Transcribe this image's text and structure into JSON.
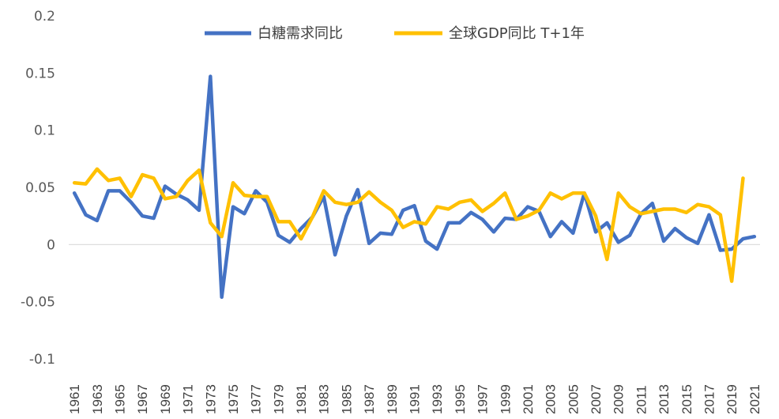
{
  "chart_data": {
    "type": "line",
    "title": "",
    "xlabel": "",
    "ylabel": "",
    "ylim": [
      -0.1,
      0.2
    ],
    "yticks": [
      -0.1,
      -0.05,
      0,
      0.05,
      0.1,
      0.15,
      0.2
    ],
    "ytick_labels": [
      "-0.1",
      "-0.05",
      "0",
      "0.05",
      "0.1",
      "0.15",
      "0.2"
    ],
    "grid": false,
    "legend_position": "top-center",
    "x": [
      1961,
      1962,
      1963,
      1964,
      1965,
      1966,
      1967,
      1968,
      1969,
      1970,
      1971,
      1972,
      1973,
      1974,
      1975,
      1976,
      1977,
      1978,
      1979,
      1980,
      1981,
      1982,
      1983,
      1984,
      1985,
      1986,
      1987,
      1988,
      1989,
      1990,
      1991,
      1992,
      1993,
      1994,
      1995,
      1996,
      1997,
      1998,
      1999,
      2000,
      2001,
      2002,
      2003,
      2004,
      2005,
      2006,
      2007,
      2008,
      2009,
      2010,
      2011,
      2012,
      2013,
      2014,
      2015,
      2016,
      2017,
      2018,
      2019,
      2020,
      2021
    ],
    "x_tick_labels": [
      "1961",
      "1963",
      "1965",
      "1967",
      "1969",
      "1971",
      "1973",
      "1975",
      "1977",
      "1979",
      "1981",
      "1983",
      "1985",
      "1987",
      "1989",
      "1991",
      "1993",
      "1995",
      "1997",
      "1999",
      "2001",
      "2003",
      "2005",
      "2007",
      "2009",
      "2011",
      "2013",
      "2015",
      "2017",
      "2019",
      "2021"
    ],
    "series": [
      {
        "name": "白糖需求同比",
        "color": "#4472C4",
        "values": [
          0.045,
          0.026,
          0.021,
          0.047,
          0.047,
          0.037,
          0.025,
          0.023,
          0.051,
          0.044,
          0.039,
          0.03,
          0.147,
          -0.046,
          0.033,
          0.027,
          0.047,
          0.037,
          0.008,
          0.002,
          0.014,
          0.024,
          0.042,
          -0.009,
          0.025,
          0.048,
          0.001,
          0.01,
          0.009,
          0.03,
          0.034,
          0.003,
          -0.004,
          0.019,
          0.019,
          0.028,
          0.022,
          0.011,
          0.023,
          0.022,
          0.033,
          0.029,
          0.007,
          0.02,
          0.01,
          0.045,
          0.011,
          0.019,
          0.002,
          0.008,
          0.027,
          0.036,
          0.003,
          0.014,
          0.006,
          0.001,
          0.026,
          -0.005,
          -0.004,
          0.005,
          0.007
        ]
      },
      {
        "name": "全球GDP同比 T+1年",
        "color": "#FFC000",
        "values": [
          0.054,
          0.053,
          0.066,
          0.056,
          0.058,
          0.042,
          0.061,
          0.058,
          0.04,
          0.042,
          0.056,
          0.065,
          0.019,
          0.007,
          0.054,
          0.043,
          0.042,
          0.042,
          0.02,
          0.02,
          0.005,
          0.024,
          0.047,
          0.037,
          0.035,
          0.037,
          0.046,
          0.037,
          0.03,
          0.015,
          0.02,
          0.018,
          0.033,
          0.031,
          0.037,
          0.039,
          0.029,
          0.036,
          0.045,
          0.022,
          0.025,
          0.03,
          0.045,
          0.04,
          0.045,
          0.045,
          0.025,
          -0.013,
          0.045,
          0.033,
          0.027,
          0.029,
          0.031,
          0.031,
          0.028,
          0.035,
          0.033,
          0.026,
          -0.032,
          0.058,
          null
        ]
      }
    ]
  }
}
